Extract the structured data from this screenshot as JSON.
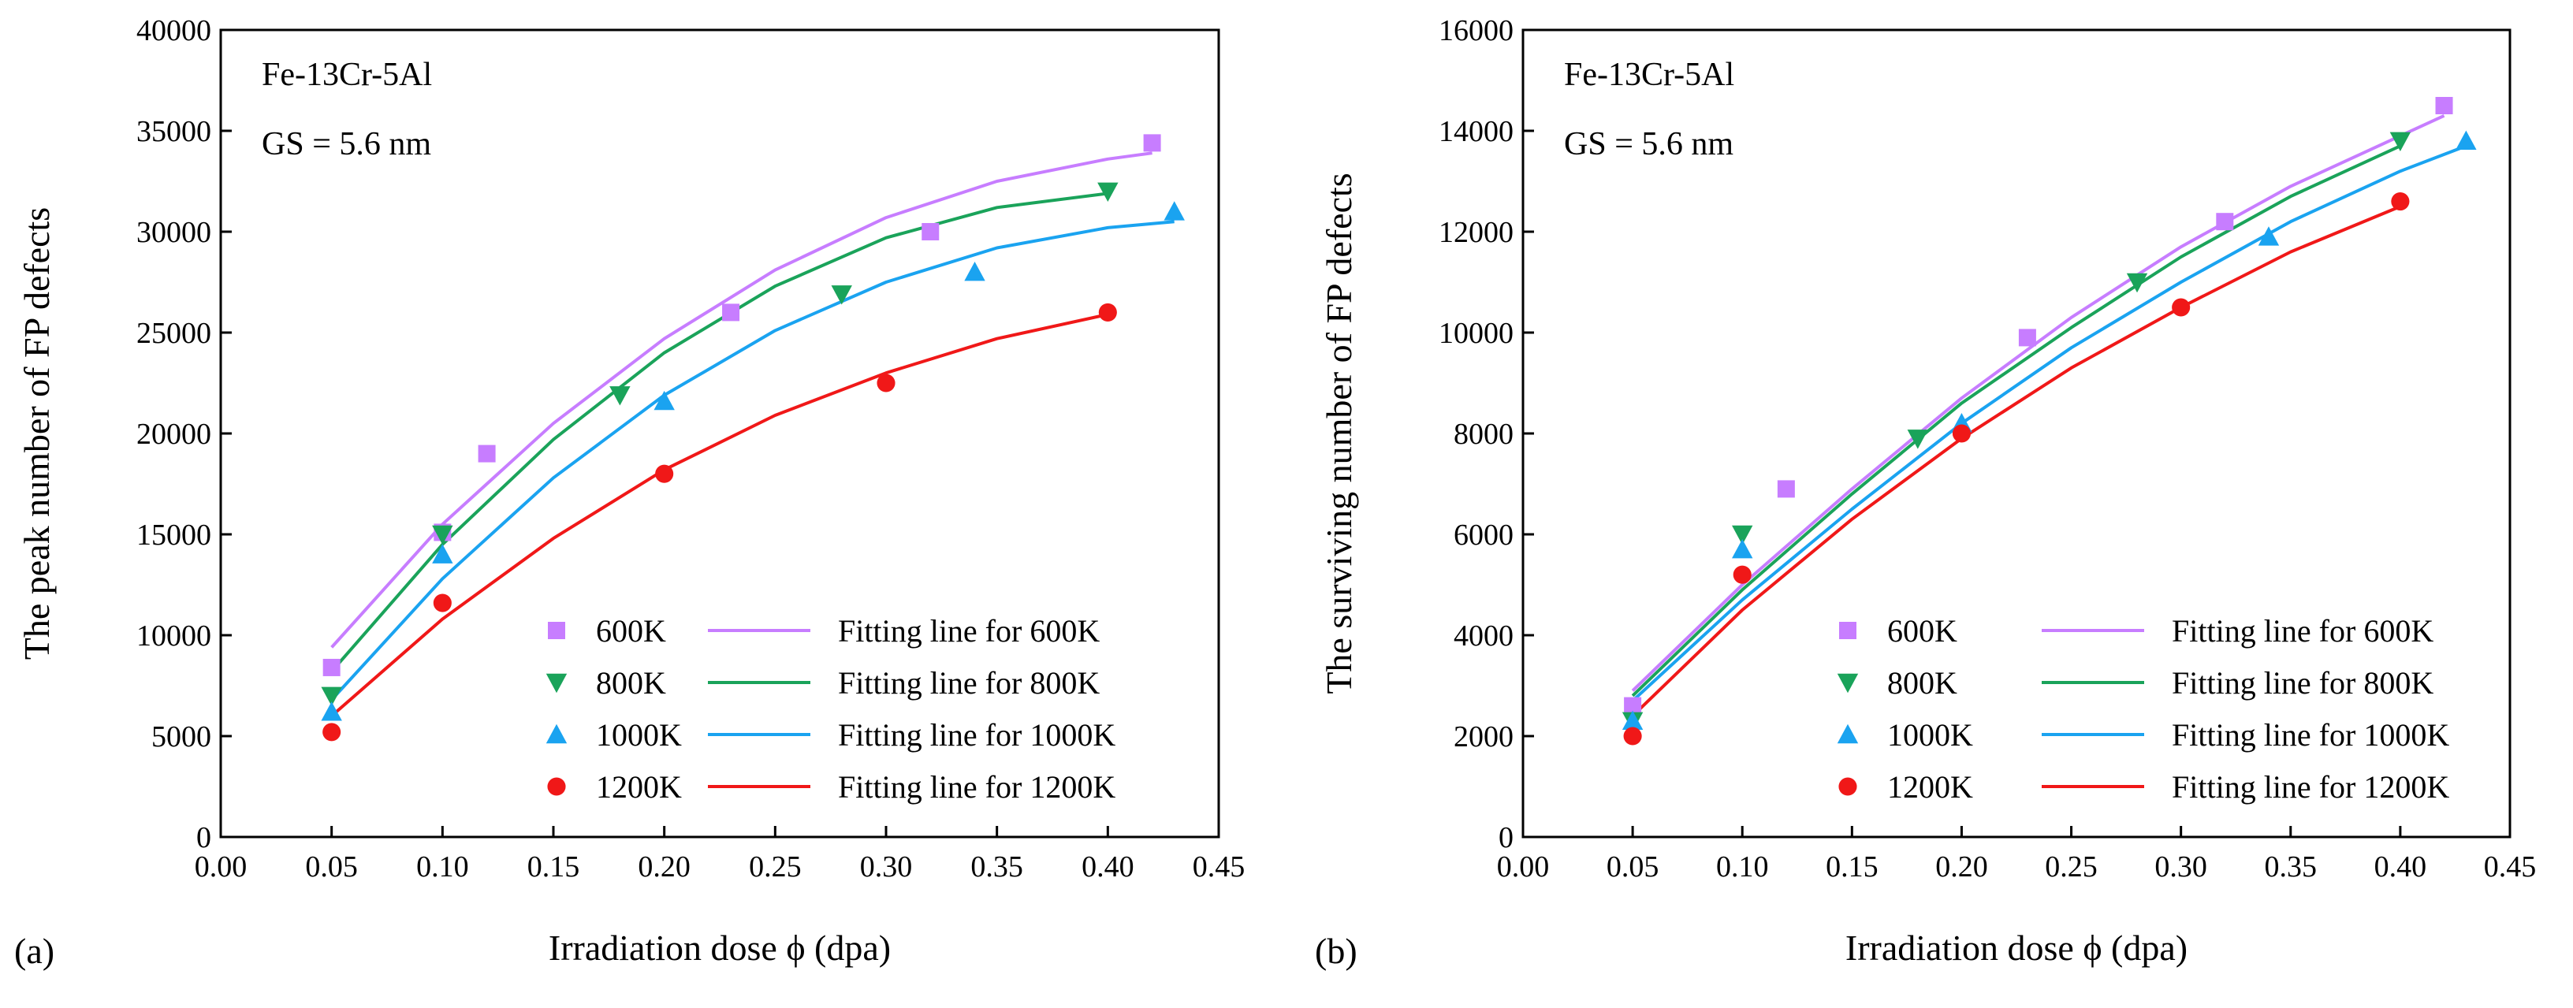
{
  "figure": {
    "panel_labels": [
      "(a)",
      "(b)"
    ],
    "colors": {
      "600K": "#c77dff",
      "800K": "#1aa35a",
      "1000K": "#1aa3f0",
      "1200K": "#f01818"
    }
  },
  "chart_data": [
    {
      "type": "scatter",
      "panel": "(a)",
      "xlabel": "Irradiation dose ϕ  (dpa)",
      "ylabel": "The peak number of FP defects",
      "xlim": [
        0.0,
        0.45
      ],
      "ylim": [
        0,
        40000
      ],
      "xticks": [
        "0.00",
        "0.05",
        "0.10",
        "0.15",
        "0.20",
        "0.25",
        "0.30",
        "0.35",
        "0.40",
        "0.45"
      ],
      "yticks": [
        "0",
        "5000",
        "10000",
        "15000",
        "20000",
        "25000",
        "30000",
        "35000",
        "40000"
      ],
      "annotations": [
        "Fe-13Cr-5Al",
        "GS  = 5.6 nm"
      ],
      "legend_position": "bottom-right",
      "series": [
        {
          "name": "600K",
          "marker": "square",
          "color": "#c77dff",
          "fit_label": "Fitting line for 600K",
          "points": [
            [
              0.05,
              8400
            ],
            [
              0.1,
              15100
            ],
            [
              0.12,
              19000
            ],
            [
              0.23,
              26000
            ],
            [
              0.32,
              30000
            ],
            [
              0.42,
              34400
            ]
          ],
          "fit": [
            [
              0.05,
              9400
            ],
            [
              0.1,
              15500
            ],
            [
              0.15,
              20500
            ],
            [
              0.2,
              24700
            ],
            [
              0.25,
              28100
            ],
            [
              0.3,
              30700
            ],
            [
              0.35,
              32500
            ],
            [
              0.4,
              33600
            ],
            [
              0.42,
              33900
            ]
          ]
        },
        {
          "name": "800K",
          "marker": "triangle-down",
          "color": "#1aa35a",
          "fit_label": "Fitting line for 800K",
          "points": [
            [
              0.05,
              7000
            ],
            [
              0.1,
              15000
            ],
            [
              0.18,
              21900
            ],
            [
              0.28,
              26900
            ],
            [
              0.4,
              32000
            ]
          ],
          "fit": [
            [
              0.05,
              8200
            ],
            [
              0.1,
              14500
            ],
            [
              0.15,
              19700
            ],
            [
              0.2,
              24000
            ],
            [
              0.25,
              27300
            ],
            [
              0.3,
              29700
            ],
            [
              0.35,
              31200
            ],
            [
              0.4,
              31900
            ]
          ]
        },
        {
          "name": "1000K",
          "marker": "triangle-up",
          "color": "#1aa3f0",
          "fit_label": "Fitting line for 1000K",
          "points": [
            [
              0.05,
              6200
            ],
            [
              0.1,
              14000
            ],
            [
              0.2,
              21600
            ],
            [
              0.34,
              28000
            ],
            [
              0.43,
              31000
            ]
          ],
          "fit": [
            [
              0.05,
              6800
            ],
            [
              0.1,
              12800
            ],
            [
              0.15,
              17800
            ],
            [
              0.2,
              21900
            ],
            [
              0.25,
              25100
            ],
            [
              0.3,
              27500
            ],
            [
              0.35,
              29200
            ],
            [
              0.4,
              30200
            ],
            [
              0.43,
              30500
            ]
          ]
        },
        {
          "name": "1200K",
          "marker": "circle",
          "color": "#f01818",
          "fit_label": "Fitting line for 1200K",
          "points": [
            [
              0.05,
              5200
            ],
            [
              0.1,
              11600
            ],
            [
              0.2,
              18000
            ],
            [
              0.3,
              22500
            ],
            [
              0.4,
              26000
            ]
          ],
          "fit": [
            [
              0.05,
              6000
            ],
            [
              0.1,
              10800
            ],
            [
              0.15,
              14800
            ],
            [
              0.2,
              18200
            ],
            [
              0.25,
              20900
            ],
            [
              0.3,
              23000
            ],
            [
              0.35,
              24700
            ],
            [
              0.4,
              25900
            ]
          ]
        }
      ]
    },
    {
      "type": "scatter",
      "panel": "(b)",
      "xlabel": "Irradiation dose ϕ  (dpa)",
      "ylabel": "The surviving number of FP defects",
      "xlim": [
        0.0,
        0.45
      ],
      "ylim": [
        0,
        16000
      ],
      "xticks": [
        "0.00",
        "0.05",
        "0.10",
        "0.15",
        "0.20",
        "0.25",
        "0.30",
        "0.35",
        "0.40",
        "0.45"
      ],
      "yticks": [
        "0",
        "2000",
        "4000",
        "6000",
        "8000",
        "10000",
        "12000",
        "14000",
        "16000"
      ],
      "annotations": [
        "Fe-13Cr-5Al",
        "GS  = 5.6 nm"
      ],
      "legend_position": "bottom-right",
      "series": [
        {
          "name": "600K",
          "marker": "square",
          "color": "#c77dff",
          "fit_label": "Fitting line for 600K",
          "points": [
            [
              0.05,
              2600
            ],
            [
              0.12,
              6900
            ],
            [
              0.23,
              9900
            ],
            [
              0.32,
              12200
            ],
            [
              0.42,
              14500
            ]
          ],
          "fit": [
            [
              0.05,
              2900
            ],
            [
              0.1,
              5000
            ],
            [
              0.15,
              6900
            ],
            [
              0.2,
              8700
            ],
            [
              0.25,
              10300
            ],
            [
              0.3,
              11700
            ],
            [
              0.35,
              12900
            ],
            [
              0.4,
              13900
            ],
            [
              0.42,
              14300
            ]
          ]
        },
        {
          "name": "800K",
          "marker": "triangle-down",
          "color": "#1aa35a",
          "fit_label": "Fitting line for 800K",
          "points": [
            [
              0.05,
              2300
            ],
            [
              0.1,
              6000
            ],
            [
              0.18,
              7900
            ],
            [
              0.28,
              11000
            ],
            [
              0.4,
              13800
            ]
          ],
          "fit": [
            [
              0.05,
              2800
            ],
            [
              0.1,
              4900
            ],
            [
              0.15,
              6800
            ],
            [
              0.2,
              8600
            ],
            [
              0.25,
              10100
            ],
            [
              0.3,
              11500
            ],
            [
              0.35,
              12700
            ],
            [
              0.4,
              13700
            ]
          ]
        },
        {
          "name": "1000K",
          "marker": "triangle-up",
          "color": "#1aa3f0",
          "fit_label": "Fitting line for 1000K",
          "points": [
            [
              0.05,
              2300
            ],
            [
              0.1,
              5700
            ],
            [
              0.2,
              8200
            ],
            [
              0.34,
              11900
            ],
            [
              0.43,
              13800
            ]
          ],
          "fit": [
            [
              0.05,
              2700
            ],
            [
              0.1,
              4700
            ],
            [
              0.15,
              6500
            ],
            [
              0.2,
              8200
            ],
            [
              0.25,
              9700
            ],
            [
              0.3,
              11000
            ],
            [
              0.35,
              12200
            ],
            [
              0.4,
              13200
            ],
            [
              0.43,
              13700
            ]
          ]
        },
        {
          "name": "1200K",
          "marker": "circle",
          "color": "#f01818",
          "fit_label": "Fitting line for 1200K",
          "points": [
            [
              0.05,
              2000
            ],
            [
              0.1,
              5200
            ],
            [
              0.2,
              8000
            ],
            [
              0.3,
              10500
            ],
            [
              0.4,
              12600
            ]
          ],
          "fit": [
            [
              0.05,
              2400
            ],
            [
              0.1,
              4500
            ],
            [
              0.15,
              6300
            ],
            [
              0.2,
              7900
            ],
            [
              0.25,
              9300
            ],
            [
              0.3,
              10500
            ],
            [
              0.35,
              11600
            ],
            [
              0.4,
              12500
            ]
          ]
        }
      ]
    }
  ]
}
